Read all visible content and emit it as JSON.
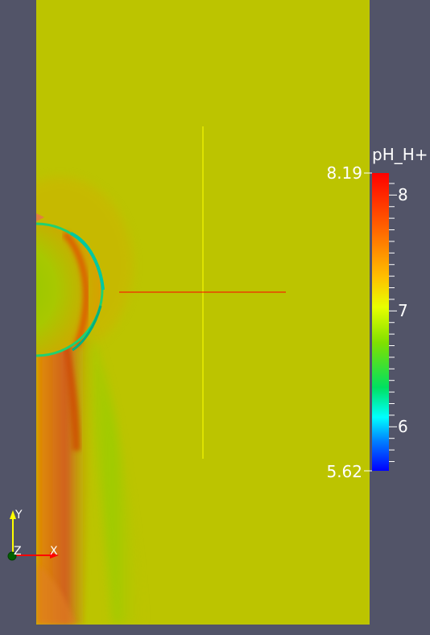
{
  "colorbar": {
    "title": "pH_H+",
    "max_label": "8.19",
    "min_label": "5.62",
    "ticks": [
      {
        "value": 8,
        "label": "8"
      },
      {
        "value": 7,
        "label": "7"
      },
      {
        "value": 6,
        "label": "6"
      }
    ],
    "range": [
      5.62,
      8.19
    ]
  },
  "orientation_axes": {
    "y_label": "Y",
    "z_label": "Z",
    "x_label": "X"
  },
  "colors": {
    "background": "#525468",
    "field_base": "#bcc400",
    "cross_vertical": "#ffff00",
    "cross_horizontal": "#ff0000"
  }
}
